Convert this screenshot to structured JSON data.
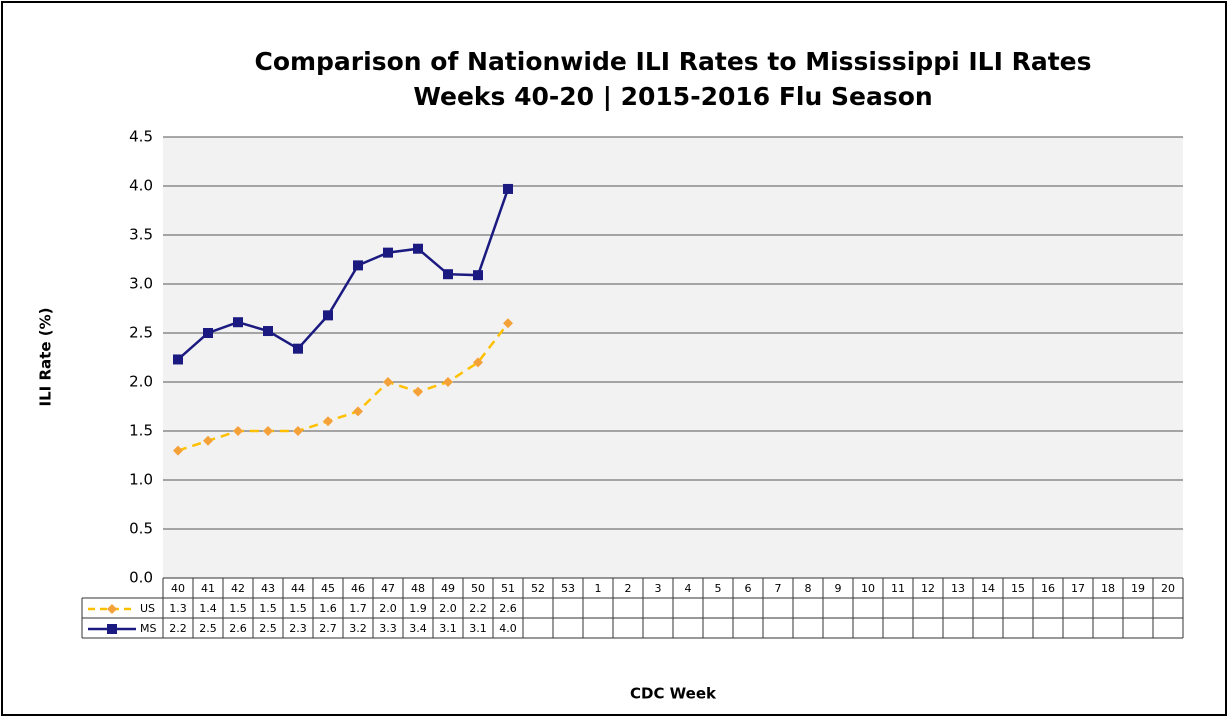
{
  "chart_data": {
    "type": "line",
    "title": "Comparison of Nationwide ILI Rates to Mississippi ILI Rates",
    "subtitle": "Weeks 40-20 | 2015-2016 Flu Season",
    "y_label": "ILI Rate (%)",
    "x_label": "CDC Week",
    "categories": [
      "40",
      "41",
      "42",
      "43",
      "44",
      "45",
      "46",
      "47",
      "48",
      "49",
      "50",
      "51",
      "52",
      "53",
      "1",
      "2",
      "3",
      "4",
      "5",
      "6",
      "7",
      "8",
      "9",
      "10",
      "11",
      "12",
      "13",
      "14",
      "15",
      "16",
      "17",
      "18",
      "19",
      "20"
    ],
    "series": [
      {
        "name": "US",
        "color": "#ffc000",
        "marker_color": "#f5a13a",
        "marker": "diamond",
        "dashed": true,
        "values": [
          1.3,
          1.4,
          1.5,
          1.5,
          1.5,
          1.6,
          1.7,
          2.0,
          1.9,
          2.0,
          2.2,
          2.6,
          null,
          null,
          null,
          null,
          null,
          null,
          null,
          null,
          null,
          null,
          null,
          null,
          null,
          null,
          null,
          null,
          null,
          null,
          null,
          null,
          null,
          null
        ],
        "value_labels": [
          "1.3",
          "1.4",
          "1.5",
          "1.5",
          "1.5",
          "1.6",
          "1.7",
          "2.0",
          "1.9",
          "2.0",
          "2.2",
          "2.6",
          null,
          null,
          null,
          null,
          null,
          null,
          null,
          null,
          null,
          null,
          null,
          null,
          null,
          null,
          null,
          null,
          null,
          null,
          null,
          null,
          null,
          null
        ]
      },
      {
        "name": "MS",
        "color": "#1a1a80",
        "marker_color": "#1a1a80",
        "marker": "square",
        "dashed": false,
        "values": [
          2.23,
          2.5,
          2.61,
          2.52,
          2.34,
          2.68,
          3.19,
          3.32,
          3.36,
          3.1,
          3.09,
          3.97,
          null,
          null,
          null,
          null,
          null,
          null,
          null,
          null,
          null,
          null,
          null,
          null,
          null,
          null,
          null,
          null,
          null,
          null,
          null,
          null,
          null,
          null
        ],
        "value_labels": [
          "2.2",
          "2.5",
          "2.6",
          "2.5",
          "2.3",
          "2.7",
          "3.2",
          "3.3",
          "3.4",
          "3.1",
          "3.1",
          "4.0",
          null,
          null,
          null,
          null,
          null,
          null,
          null,
          null,
          null,
          null,
          null,
          null,
          null,
          null,
          null,
          null,
          null,
          null,
          null,
          null,
          null,
          null
        ]
      }
    ],
    "ylim": [
      0,
      4.5
    ],
    "yticks": [
      {
        "value": 0,
        "label": "0.0"
      },
      0.5,
      {
        "value": 1,
        "label": "1.0"
      },
      1.5,
      {
        "value": 2,
        "label": "2.0"
      },
      2.5,
      {
        "value": 3,
        "label": "3.0"
      },
      3.5,
      {
        "value": 4,
        "label": "4.0"
      },
      4.5
    ],
    "grid": true
  }
}
